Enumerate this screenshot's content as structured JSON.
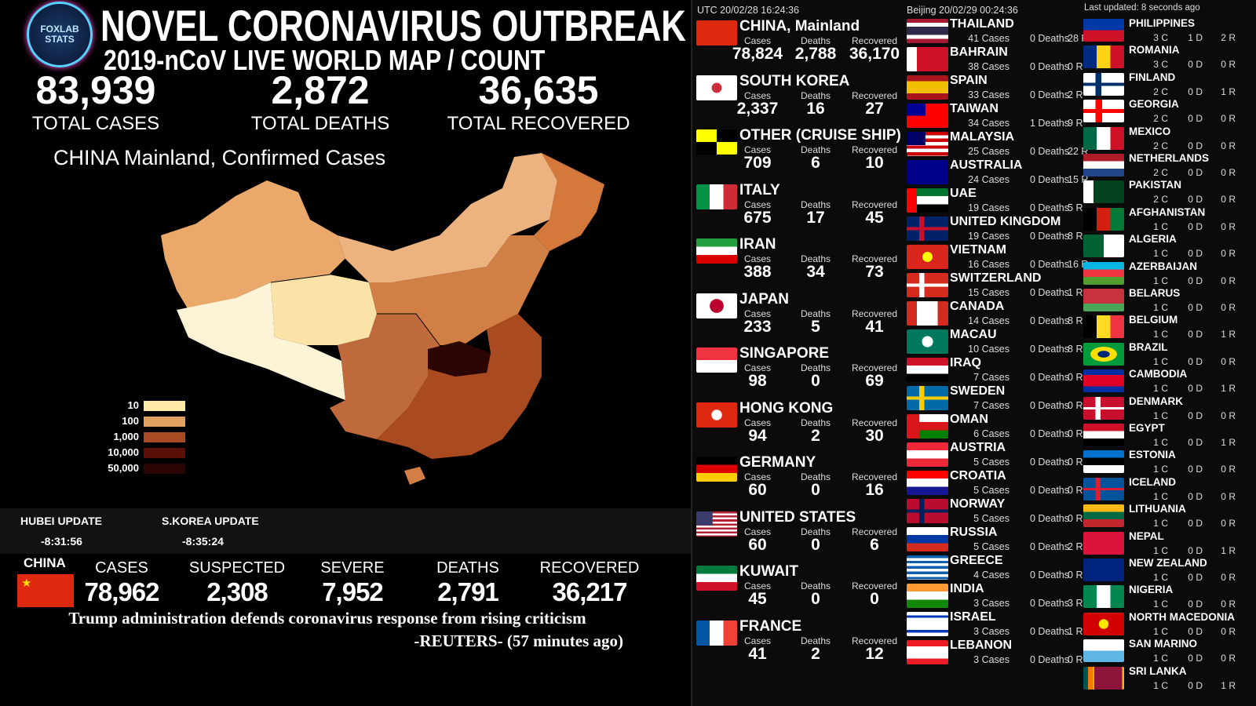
{
  "header": {
    "logo": [
      "FOXLAB",
      "STATS"
    ],
    "title": "NOVEL CORONAVIRUS OUTBREAK",
    "subtitle": "2019-nCoV LIVE WORLD MAP / COUNT"
  },
  "totals": [
    {
      "value": "83,939",
      "label": "TOTAL CASES"
    },
    {
      "value": "2,872",
      "label": "TOTAL DEATHS"
    },
    {
      "value": "36,635",
      "label": "TOTAL RECOVERED"
    }
  ],
  "map": {
    "title": "CHINA Mainland, Confirmed Cases",
    "legend": [
      "10",
      "100",
      "1,000",
      "10,000",
      "50,000"
    ]
  },
  "updates": [
    {
      "label": "HUBEI UPDATE",
      "time": "-8:31:56"
    },
    {
      "label": "S.KOREA UPDATE",
      "time": "-8:35:24"
    }
  ],
  "china_summary": {
    "label": "CHINA",
    "stats": [
      {
        "label": "CASES",
        "value": "78,962"
      },
      {
        "label": "SUSPECTED",
        "value": "2,308"
      },
      {
        "label": "SEVERE",
        "value": "7,952"
      },
      {
        "label": "DEATHS",
        "value": "2,791"
      },
      {
        "label": "RECOVERED",
        "value": "36,217"
      }
    ]
  },
  "news": {
    "headline": "Trump administration defends coronavirus response from rising criticism",
    "source": "-REUTERS- (57 minutes ago)"
  },
  "clocks": {
    "utc": "UTC 20/02/28 16:24:36",
    "beijing": "Beijing 20/02/29 00:24:36",
    "updated": "Last updated: 8 seconds ago"
  },
  "major": {
    "labels": {
      "cases": "Cases",
      "deaths": "Deaths",
      "recovered": "Recovered"
    },
    "countries": [
      {
        "name": "CHINA, Mainland",
        "cases": "78,824",
        "deaths": "2,788",
        "recovered": "36,170"
      },
      {
        "name": "SOUTH KOREA",
        "cases": "2,337",
        "deaths": "16",
        "recovered": "27"
      },
      {
        "name": "OTHER (CRUISE SHIP)",
        "cases": "709",
        "deaths": "6",
        "recovered": "10"
      },
      {
        "name": "ITALY",
        "cases": "675",
        "deaths": "17",
        "recovered": "45"
      },
      {
        "name": "IRAN",
        "cases": "388",
        "deaths": "34",
        "recovered": "73"
      },
      {
        "name": "JAPAN",
        "cases": "233",
        "deaths": "5",
        "recovered": "41"
      },
      {
        "name": "SINGAPORE",
        "cases": "98",
        "deaths": "0",
        "recovered": "69"
      },
      {
        "name": "HONG KONG",
        "cases": "94",
        "deaths": "2",
        "recovered": "30"
      },
      {
        "name": "GERMANY",
        "cases": "60",
        "deaths": "0",
        "recovered": "16"
      },
      {
        "name": "UNITED STATES",
        "cases": "60",
        "deaths": "0",
        "recovered": "6"
      },
      {
        "name": "KUWAIT",
        "cases": "45",
        "deaths": "0",
        "recovered": "0"
      },
      {
        "name": "FRANCE",
        "cases": "41",
        "deaths": "2",
        "recovered": "12"
      }
    ]
  },
  "minor": {
    "labels": {
      "cases": "Cases",
      "deaths": "Deaths",
      "recovered": "R"
    },
    "countries": [
      {
        "name": "THAILAND",
        "cases": "41",
        "deaths": "0",
        "recovered": "28"
      },
      {
        "name": "BAHRAIN",
        "cases": "38",
        "deaths": "0",
        "recovered": "0"
      },
      {
        "name": "SPAIN",
        "cases": "33",
        "deaths": "0",
        "recovered": "2"
      },
      {
        "name": "TAIWAN",
        "cases": "34",
        "deaths": "1",
        "recovered": "9"
      },
      {
        "name": "MALAYSIA",
        "cases": "25",
        "deaths": "0",
        "recovered": "22"
      },
      {
        "name": "AUSTRALIA",
        "cases": "24",
        "deaths": "0",
        "recovered": "15"
      },
      {
        "name": "UAE",
        "cases": "19",
        "deaths": "0",
        "recovered": "5"
      },
      {
        "name": "UNITED KINGDOM",
        "cases": "19",
        "deaths": "0",
        "recovered": "8"
      },
      {
        "name": "VIETNAM",
        "cases": "16",
        "deaths": "0",
        "recovered": "16"
      },
      {
        "name": "SWITZERLAND",
        "cases": "15",
        "deaths": "0",
        "recovered": "1"
      },
      {
        "name": "CANADA",
        "cases": "14",
        "deaths": "0",
        "recovered": "8"
      },
      {
        "name": "MACAU",
        "cases": "10",
        "deaths": "0",
        "recovered": "8"
      },
      {
        "name": "IRAQ",
        "cases": "7",
        "deaths": "0",
        "recovered": "0"
      },
      {
        "name": "SWEDEN",
        "cases": "7",
        "deaths": "0",
        "recovered": "0"
      },
      {
        "name": "OMAN",
        "cases": "6",
        "deaths": "0",
        "recovered": "0"
      },
      {
        "name": "AUSTRIA",
        "cases": "5",
        "deaths": "0",
        "recovered": "0"
      },
      {
        "name": "CROATIA",
        "cases": "5",
        "deaths": "0",
        "recovered": "0"
      },
      {
        "name": "NORWAY",
        "cases": "5",
        "deaths": "0",
        "recovered": "0"
      },
      {
        "name": "RUSSIA",
        "cases": "5",
        "deaths": "0",
        "recovered": "2"
      },
      {
        "name": "GREECE",
        "cases": "4",
        "deaths": "0",
        "recovered": "0"
      },
      {
        "name": "INDIA",
        "cases": "3",
        "deaths": "0",
        "recovered": "3"
      },
      {
        "name": "ISRAEL",
        "cases": "3",
        "deaths": "0",
        "recovered": "1"
      },
      {
        "name": "LEBANON",
        "cases": "3",
        "deaths": "0",
        "recovered": "0"
      }
    ]
  },
  "small": {
    "labels": {
      "cases": "C",
      "deaths": "D",
      "recovered": "R"
    },
    "countries": [
      {
        "name": "PHILIPPINES",
        "cases": "3",
        "deaths": "1",
        "recovered": "2"
      },
      {
        "name": "ROMANIA",
        "cases": "3",
        "deaths": "0",
        "recovered": "0"
      },
      {
        "name": "FINLAND",
        "cases": "2",
        "deaths": "0",
        "recovered": "1"
      },
      {
        "name": "GEORGIA",
        "cases": "2",
        "deaths": "0",
        "recovered": "0"
      },
      {
        "name": "MEXICO",
        "cases": "2",
        "deaths": "0",
        "recovered": "0"
      },
      {
        "name": "NETHERLANDS",
        "cases": "2",
        "deaths": "0",
        "recovered": "0"
      },
      {
        "name": "PAKISTAN",
        "cases": "2",
        "deaths": "0",
        "recovered": "0"
      },
      {
        "name": "AFGHANISTAN",
        "cases": "1",
        "deaths": "0",
        "recovered": "0"
      },
      {
        "name": "ALGERIA",
        "cases": "1",
        "deaths": "0",
        "recovered": "0"
      },
      {
        "name": "AZERBAIJAN",
        "cases": "1",
        "deaths": "0",
        "recovered": "0"
      },
      {
        "name": "BELARUS",
        "cases": "1",
        "deaths": "0",
        "recovered": "0"
      },
      {
        "name": "BELGIUM",
        "cases": "1",
        "deaths": "0",
        "recovered": "1"
      },
      {
        "name": "BRAZIL",
        "cases": "1",
        "deaths": "0",
        "recovered": "0"
      },
      {
        "name": "CAMBODIA",
        "cases": "1",
        "deaths": "0",
        "recovered": "1"
      },
      {
        "name": "DENMARK",
        "cases": "1",
        "deaths": "0",
        "recovered": "0"
      },
      {
        "name": "EGYPT",
        "cases": "1",
        "deaths": "0",
        "recovered": "1"
      },
      {
        "name": "ESTONIA",
        "cases": "1",
        "deaths": "0",
        "recovered": "0"
      },
      {
        "name": "ICELAND",
        "cases": "1",
        "deaths": "0",
        "recovered": "0"
      },
      {
        "name": "LITHUANIA",
        "cases": "1",
        "deaths": "0",
        "recovered": "0"
      },
      {
        "name": "NEPAL",
        "cases": "1",
        "deaths": "0",
        "recovered": "1"
      },
      {
        "name": "NEW ZEALAND",
        "cases": "1",
        "deaths": "0",
        "recovered": "0"
      },
      {
        "name": "NIGERIA",
        "cases": "1",
        "deaths": "0",
        "recovered": "0"
      },
      {
        "name": "NORTH MACEDONIA",
        "cases": "1",
        "deaths": "0",
        "recovered": "0"
      },
      {
        "name": "SAN MARINO",
        "cases": "1",
        "deaths": "0",
        "recovered": "0"
      },
      {
        "name": "SRI LANKA",
        "cases": "1",
        "deaths": "0",
        "recovered": "1"
      }
    ]
  }
}
